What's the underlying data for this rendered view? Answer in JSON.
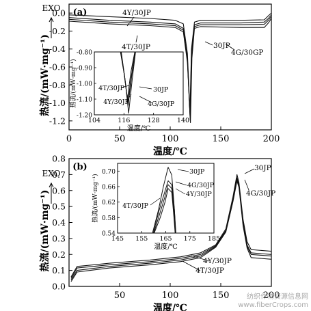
{
  "chart_data": [
    {
      "panel": "(a)",
      "type": "line",
      "exo_label": "EXO",
      "xlabel": "温度/℃",
      "ylabel": "热流/(mW·mg⁻¹)",
      "xlim": [
        0,
        200
      ],
      "ylim": [
        -1.3,
        0.1
      ],
      "xticks": [
        0,
        50,
        100,
        150,
        200
      ],
      "yticks": [
        "0.0",
        "-0.2",
        "-0.4",
        "-0.6",
        "-0.8",
        "-1.0",
        "-1.2"
      ],
      "ytick_values": [
        0,
        -0.2,
        -0.4,
        -0.6,
        -0.8,
        -1.0,
        -1.2
      ],
      "series": [
        {
          "name": "4Y/30JP",
          "points": [
            [
              0,
              -0.02
            ],
            [
              40,
              -0.04
            ],
            [
              80,
              -0.06
            ],
            [
              105,
              -0.08
            ],
            [
              113,
              -0.12
            ],
            [
              117,
              -0.45
            ],
            [
              119.5,
              -1.1
            ],
            [
              121,
              -0.4
            ],
            [
              124,
              -0.1
            ],
            [
              130,
              -0.08
            ],
            [
              170,
              -0.08
            ],
            [
              193,
              -0.075
            ],
            [
              197,
              -0.03
            ],
            [
              200,
              0.0
            ]
          ]
        },
        {
          "name": "4T/30JP",
          "points": [
            [
              0,
              -0.05
            ],
            [
              40,
              -0.08
            ],
            [
              80,
              -0.1
            ],
            [
              105,
              -0.12
            ],
            [
              113,
              -0.17
            ],
            [
              117,
              -0.5
            ],
            [
              119.8,
              -1.19
            ],
            [
              121.3,
              -0.45
            ],
            [
              124,
              -0.13
            ],
            [
              130,
              -0.11
            ],
            [
              170,
              -0.11
            ],
            [
              193,
              -0.1
            ],
            [
              197,
              -0.06
            ],
            [
              200,
              -0.02
            ]
          ]
        },
        {
          "name": "30JP",
          "points": [
            [
              0,
              -0.07
            ],
            [
              40,
              -0.1
            ],
            [
              80,
              -0.12
            ],
            [
              105,
              -0.14
            ],
            [
              113,
              -0.19
            ],
            [
              117,
              -0.52
            ],
            [
              119.6,
              -1.15
            ],
            [
              121,
              -0.45
            ],
            [
              124,
              -0.15
            ],
            [
              130,
              -0.13
            ],
            [
              170,
              -0.13
            ],
            [
              193,
              -0.125
            ],
            [
              197,
              -0.08
            ],
            [
              200,
              -0.04
            ]
          ]
        },
        {
          "name": "4G/30GP",
          "points": [
            [
              0,
              -0.09
            ],
            [
              40,
              -0.12
            ],
            [
              80,
              -0.14
            ],
            [
              105,
              -0.16
            ],
            [
              113,
              -0.21
            ],
            [
              117,
              -0.55
            ],
            [
              120,
              -1.22
            ],
            [
              121.5,
              -0.5
            ],
            [
              124,
              -0.17
            ],
            [
              130,
              -0.15
            ],
            [
              170,
              -0.16
            ],
            [
              193,
              -0.16
            ],
            [
              197,
              -0.11
            ],
            [
              200,
              -0.06
            ]
          ]
        }
      ],
      "labels": [
        "4Y/30JP",
        "4T/30JP",
        "30JP",
        "4G/30GP"
      ],
      "inset": {
        "ylabel": "热流/(mW·mg⁻¹)",
        "xlabel": "温度/℃",
        "xlim": [
          104,
          140
        ],
        "ylim": [
          -1.2,
          -0.8
        ],
        "xticks": [
          104,
          116,
          128,
          140
        ],
        "yticks": [
          "-0.80",
          "-0.90",
          "-1.00",
          "-1.10",
          "-1.20"
        ],
        "ytick_values": [
          -0.8,
          -0.9,
          -1.0,
          -1.1,
          -1.2
        ],
        "labels": [
          "4T/30JP",
          "4Y/30JP",
          "30JP",
          "4G/30JP"
        ],
        "series": [
          {
            "name": "4Y/30JP",
            "points": [
              [
                114.6,
                -0.8
              ],
              [
                116,
                -0.93
              ],
              [
                117.4,
                -1.1
              ],
              [
                118.8,
                -0.93
              ],
              [
                120.4,
                -0.8
              ]
            ]
          },
          {
            "name": "4T/30JP",
            "points": [
              [
                114.6,
                -0.8
              ],
              [
                116.2,
                -0.95
              ],
              [
                117.6,
                -1.12
              ],
              [
                119,
                -0.95
              ],
              [
                120.5,
                -0.8
              ]
            ]
          },
          {
            "name": "30JP",
            "points": [
              [
                114.8,
                -0.8
              ],
              [
                116.3,
                -0.96
              ],
              [
                117.7,
                -1.14
              ],
              [
                119.1,
                -0.96
              ],
              [
                120.6,
                -0.8
              ]
            ]
          },
          {
            "name": "4G/30JP",
            "points": [
              [
                114.9,
                -0.8
              ],
              [
                116.5,
                -0.98
              ],
              [
                117.9,
                -1.19
              ],
              [
                119.3,
                -0.98
              ],
              [
                120.7,
                -0.8
              ]
            ]
          }
        ]
      }
    },
    {
      "panel": "(b)",
      "type": "line",
      "exo_label": "EXO",
      "xlabel": "温度/℃",
      "ylabel": "热流/(mW·mg⁻¹)",
      "xlim": [
        0,
        200
      ],
      "ylim": [
        0,
        0.8
      ],
      "xticks": [
        50,
        100,
        150,
        200
      ],
      "yticks": [
        "0.0",
        "0.1",
        "0.2",
        "0.3",
        "0.4",
        "0.5",
        "0.6",
        "0.7",
        "0.8"
      ],
      "ytick_values": [
        0,
        0.1,
        0.2,
        0.3,
        0.4,
        0.5,
        0.6,
        0.7,
        0.8
      ],
      "series": [
        {
          "name": "30JP",
          "points": [
            [
              2,
              0.06
            ],
            [
              8,
              0.125
            ],
            [
              40,
              0.145
            ],
            [
              80,
              0.165
            ],
            [
              110,
              0.185
            ],
            [
              130,
              0.21
            ],
            [
              145,
              0.26
            ],
            [
              155,
              0.36
            ],
            [
              162,
              0.56
            ],
            [
              166,
              0.7
            ],
            [
              168,
              0.65
            ],
            [
              172,
              0.42
            ],
            [
              176,
              0.28
            ],
            [
              180,
              0.23
            ],
            [
              200,
              0.22
            ]
          ]
        },
        {
          "name": "4G/30JP",
          "points": [
            [
              2,
              0.05
            ],
            [
              8,
              0.115
            ],
            [
              40,
              0.135
            ],
            [
              80,
              0.155
            ],
            [
              110,
              0.175
            ],
            [
              130,
              0.2
            ],
            [
              145,
              0.255
            ],
            [
              155,
              0.35
            ],
            [
              162,
              0.55
            ],
            [
              166,
              0.68
            ],
            [
              168,
              0.64
            ],
            [
              172,
              0.4
            ],
            [
              176,
              0.26
            ],
            [
              180,
              0.21
            ],
            [
              200,
              0.2
            ]
          ]
        },
        {
          "name": "4Y/30JP",
          "points": [
            [
              2,
              0.04
            ],
            [
              8,
              0.1
            ],
            [
              40,
              0.125
            ],
            [
              80,
              0.145
            ],
            [
              110,
              0.165
            ],
            [
              130,
              0.19
            ],
            [
              145,
              0.25
            ],
            [
              155,
              0.345
            ],
            [
              162,
              0.54
            ],
            [
              166,
              0.67
            ],
            [
              168,
              0.63
            ],
            [
              172,
              0.39
            ],
            [
              176,
              0.25
            ],
            [
              180,
              0.2
            ],
            [
              200,
              0.19
            ]
          ]
        },
        {
          "name": "4T/30JP",
          "points": [
            [
              2,
              0.03
            ],
            [
              8,
              0.09
            ],
            [
              40,
              0.115
            ],
            [
              80,
              0.135
            ],
            [
              110,
              0.155
            ],
            [
              130,
              0.18
            ],
            [
              145,
              0.245
            ],
            [
              155,
              0.34
            ],
            [
              162,
              0.53
            ],
            [
              166,
              0.66
            ],
            [
              168,
              0.62
            ],
            [
              172,
              0.38
            ],
            [
              176,
              0.24
            ],
            [
              180,
              0.18
            ],
            [
              200,
              0.17
            ]
          ]
        }
      ],
      "labels": [
        "30JP",
        "4G/30JP",
        "4Y/30JP",
        "4T/30JP"
      ],
      "inset": {
        "ylabel": "热流/(mW·mg⁻¹)",
        "xlabel": "温度/℃",
        "xlim": [
          145,
          185
        ],
        "ylim": [
          0.54,
          0.72
        ],
        "xticks": [
          145,
          155,
          165,
          175,
          185
        ],
        "yticks": [
          "0.70",
          "0.66",
          "0.62",
          "0.58",
          "0.54"
        ],
        "ytick_values": [
          0.7,
          0.66,
          0.62,
          0.58,
          0.54
        ],
        "labels": [
          "30JP",
          "4G/30JP",
          "4Y/30JP",
          "4T/30JP"
        ],
        "series": [
          {
            "name": "30JP",
            "points": [
              [
                159.5,
                0.54
              ],
              [
                162,
                0.6
              ],
              [
                164,
                0.66
              ],
              [
                166,
                0.71
              ],
              [
                167.5,
                0.69
              ],
              [
                168.6,
                0.6
              ],
              [
                169.2,
                0.54
              ]
            ]
          },
          {
            "name": "4G/30JP",
            "points": [
              [
                159.8,
                0.54
              ],
              [
                162.3,
                0.6
              ],
              [
                164.3,
                0.64
              ],
              [
                166,
                0.675
              ],
              [
                167.5,
                0.665
              ],
              [
                168.6,
                0.6
              ],
              [
                169.1,
                0.54
              ]
            ]
          },
          {
            "name": "4Y/30JP",
            "points": [
              [
                160,
                0.54
              ],
              [
                162.5,
                0.59
              ],
              [
                164.5,
                0.63
              ],
              [
                166,
                0.665
              ],
              [
                167.5,
                0.655
              ],
              [
                168.5,
                0.59
              ],
              [
                169,
                0.54
              ]
            ]
          },
          {
            "name": "4T/30JP",
            "points": [
              [
                160.2,
                0.54
              ],
              [
                162.7,
                0.58
              ],
              [
                164.7,
                0.62
              ],
              [
                166,
                0.655
              ],
              [
                167.5,
                0.645
              ],
              [
                168.4,
                0.58
              ],
              [
                168.9,
                0.54
              ]
            ]
          }
        ]
      }
    }
  ],
  "watermark": {
    "line1": "纺织作物资源信息网",
    "line2": "www.fiberCrops.com"
  }
}
